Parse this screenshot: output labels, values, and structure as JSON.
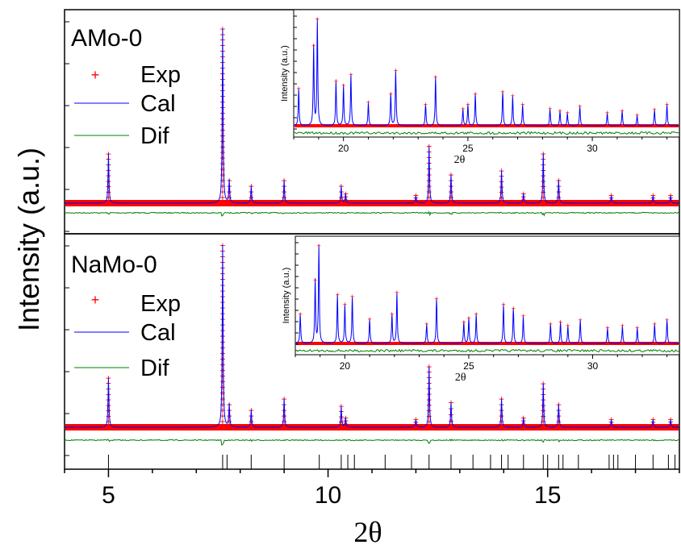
{
  "figure": {
    "ylabel": "Intensity (a.u.)",
    "xlabel": "2θ",
    "xticks": [
      5,
      10,
      15
    ],
    "xlim": [
      4,
      18
    ],
    "colors": {
      "exp": "#ff0000",
      "cal": "#0000ff",
      "dif": "#008000",
      "axis": "#000000"
    }
  },
  "chart_data": [
    {
      "type": "line",
      "panel": "top",
      "sample_label": "AMo-0",
      "legend": [
        "Exp",
        "Cal",
        "Dif"
      ],
      "xlim": [
        4,
        18
      ],
      "peaks_x": [
        5.0,
        7.6,
        7.75,
        8.25,
        9.0,
        10.3,
        10.4,
        12.0,
        12.3,
        12.8,
        13.95,
        14.45,
        14.9,
        15.25,
        16.45,
        17.4,
        17.8
      ],
      "peaks_rel_intensity": [
        0.26,
        0.92,
        0.12,
        0.09,
        0.12,
        0.09,
        0.05,
        0.04,
        0.3,
        0.15,
        0.17,
        0.05,
        0.26,
        0.12,
        0.04,
        0.04,
        0.04
      ],
      "inset": {
        "xlabel": "2θ",
        "ylabel": "Intensity (a.u.)",
        "xticks": [
          20,
          25,
          30
        ],
        "xlim": [
          18,
          33.5
        ],
        "peaks_x": [
          18.2,
          18.8,
          18.95,
          19.7,
          20.0,
          20.3,
          21.0,
          21.9,
          22.1,
          23.3,
          23.7,
          24.8,
          25.0,
          25.3,
          26.4,
          26.8,
          27.2,
          28.3,
          28.7,
          29.0,
          29.5,
          30.6,
          31.2,
          31.8,
          32.5,
          33.0
        ],
        "peaks_rel_intensity": [
          0.35,
          0.75,
          1.0,
          0.42,
          0.38,
          0.48,
          0.22,
          0.3,
          0.52,
          0.2,
          0.46,
          0.16,
          0.2,
          0.3,
          0.32,
          0.28,
          0.2,
          0.16,
          0.14,
          0.12,
          0.18,
          0.12,
          0.14,
          0.1,
          0.15,
          0.2
        ]
      }
    },
    {
      "type": "line",
      "panel": "bottom",
      "sample_label": "NaMo-0",
      "legend": [
        "Exp",
        "Cal",
        "Dif"
      ],
      "xlim": [
        4,
        18
      ],
      "peaks_x": [
        5.0,
        7.6,
        7.75,
        8.25,
        9.0,
        10.3,
        10.4,
        12.0,
        12.3,
        12.8,
        13.95,
        14.45,
        14.9,
        15.25,
        16.45,
        17.4,
        17.8
      ],
      "peaks_rel_intensity": [
        0.26,
        0.96,
        0.12,
        0.09,
        0.15,
        0.11,
        0.05,
        0.04,
        0.32,
        0.13,
        0.15,
        0.05,
        0.23,
        0.12,
        0.04,
        0.04,
        0.04
      ],
      "bragg_ticks_x": [
        5.0,
        7.6,
        7.7,
        8.25,
        9.0,
        9.8,
        10.3,
        10.45,
        10.6,
        11.3,
        11.9,
        12.3,
        12.8,
        13.3,
        13.7,
        13.95,
        14.1,
        14.45,
        14.9,
        15.0,
        15.25,
        15.35,
        15.7,
        16.4,
        16.5,
        16.6,
        17.0,
        17.4,
        17.75,
        17.9
      ],
      "inset": {
        "xlabel": "2θ",
        "ylabel": "Intensity (a.u.)",
        "xticks": [
          20,
          25,
          30
        ],
        "xlim": [
          18,
          33.5
        ],
        "peaks_x": [
          18.2,
          18.8,
          18.95,
          19.7,
          20.0,
          20.3,
          21.0,
          21.9,
          22.1,
          23.3,
          23.7,
          24.8,
          25.0,
          25.3,
          26.4,
          26.8,
          27.2,
          28.3,
          28.7,
          29.0,
          29.5,
          30.6,
          31.2,
          31.8,
          32.5,
          33.0
        ],
        "peaks_rel_intensity": [
          0.3,
          0.65,
          1.0,
          0.5,
          0.4,
          0.48,
          0.25,
          0.3,
          0.52,
          0.2,
          0.46,
          0.22,
          0.26,
          0.3,
          0.4,
          0.36,
          0.28,
          0.2,
          0.22,
          0.18,
          0.24,
          0.16,
          0.18,
          0.16,
          0.2,
          0.24
        ]
      }
    }
  ]
}
